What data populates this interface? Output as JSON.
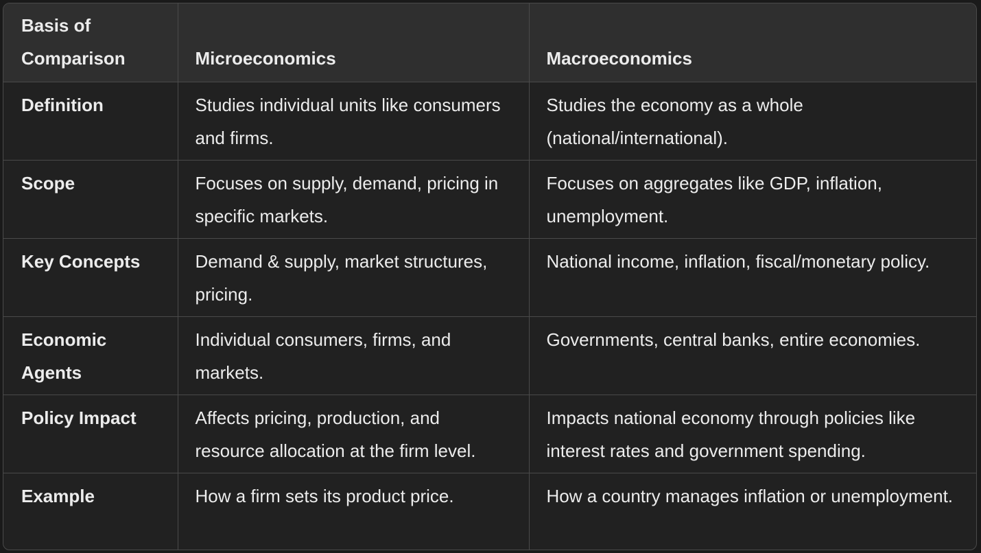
{
  "table": {
    "headers": [
      "Basis of Comparison",
      "Microeconomics",
      "Macroeconomics"
    ],
    "rows": [
      [
        "Definition",
        "Studies individual units like consumers and firms.",
        "Studies the economy as a whole (national/international)."
      ],
      [
        "Scope",
        "Focuses on supply, demand, pricing in specific markets.",
        "Focuses on aggregates like GDP, inflation, unemployment."
      ],
      [
        "Key Concepts",
        "Demand & supply, market structures, pricing.",
        "National income, inflation, fiscal/monetary policy."
      ],
      [
        "Economic Agents",
        "Individual consumers, firms, and markets.",
        "Governments, central banks, entire economies."
      ],
      [
        "Policy Impact",
        "Affects pricing, production, and resource allocation at the firm level.",
        "Impacts national economy through policies like interest rates and government spending."
      ],
      [
        "Example",
        "How a firm sets its product price.",
        "How a country manages inflation or unemployment."
      ]
    ]
  }
}
